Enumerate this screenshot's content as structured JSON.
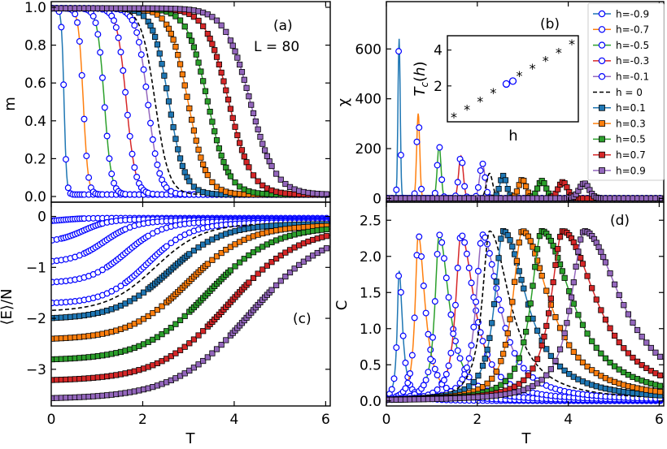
{
  "h_values": [
    -0.9,
    -0.7,
    -0.5,
    -0.3,
    -0.1,
    0,
    0.1,
    0.3,
    0.5,
    0.7,
    0.9
  ],
  "Tc_values": [
    0.28,
    0.7,
    1.16,
    1.64,
    2.11,
    2.27,
    2.57,
    2.99,
    3.42,
    3.88,
    4.35
  ],
  "series_colors": [
    "#1f77b4",
    "#ff7f0e",
    "#2ca02c",
    "#d62728",
    "#9467bd",
    "#000000",
    "#1f77b4",
    "#ff7f0e",
    "#2ca02c",
    "#d62728",
    "#9467bd"
  ],
  "marker_edge": "#0000ff",
  "chart_data": [
    {
      "id": "a",
      "type": "line",
      "panel_label": "(a)",
      "annotation": "L = 80",
      "xlabel": "",
      "ylabel": "m",
      "xlim": [
        0,
        6.1
      ],
      "ylim": [
        -0.03,
        1.03
      ],
      "xticks": [
        "0",
        "2",
        "4",
        "6"
      ],
      "yticks": [
        "0.0",
        "0.2",
        "0.4",
        "0.6",
        "0.8",
        "1.0"
      ],
      "ytick_values": [
        0,
        0.2,
        0.4,
        0.6,
        0.8,
        1.0
      ]
    },
    {
      "id": "b",
      "type": "line",
      "panel_label": "(b)",
      "xlabel": "",
      "ylabel": "χ",
      "xlim": [
        0,
        6.1
      ],
      "ylim": [
        -15,
        790
      ],
      "peak_values": [
        640,
        340,
        210,
        170,
        140,
        100,
        90,
        75,
        70,
        65,
        60
      ],
      "xticks": [
        "0",
        "2",
        "4",
        "6"
      ],
      "yticks": [
        "0",
        "200",
        "400",
        "600"
      ],
      "ytick_values": [
        0,
        200,
        400,
        600
      ],
      "legend": [
        "h=-0.9",
        "h=-0.7",
        "h=-0.5",
        "h=-0.3",
        "h=-0.1",
        "h = 0",
        "h=0.1",
        "h=0.3",
        "h=0.5",
        "h=0.7",
        "h=0.9"
      ],
      "inset": {
        "type": "scatter",
        "xlabel": "h",
        "ylabel": "T_c(h)",
        "xlim": [
          -1.0,
          1.0
        ],
        "ylim": [
          0,
          4.8
        ],
        "yticks": [
          "2",
          "4"
        ],
        "ytick_values": [
          2,
          4
        ],
        "x": [
          -0.9,
          -0.7,
          -0.5,
          -0.3,
          -0.1,
          0,
          0.1,
          0.3,
          0.5,
          0.7,
          0.9
        ],
        "y": [
          0.28,
          0.7,
          1.16,
          1.64,
          2.11,
          2.27,
          2.57,
          2.99,
          3.42,
          3.88,
          4.35
        ],
        "highlight": [
          -0.1,
          0
        ]
      }
    },
    {
      "id": "c",
      "type": "line",
      "panel_label": "(c)",
      "xlabel": "T",
      "ylabel": "⟨E⟩/N",
      "xlim": [
        0,
        6.1
      ],
      "ylim": [
        -3.72,
        0.28
      ],
      "ground_energy": [
        -0.1,
        -0.5,
        -0.9,
        -1.3,
        -1.7,
        -1.85,
        -2.0,
        -2.4,
        -2.8,
        -3.2,
        -3.55
      ],
      "xticks": [
        "0",
        "2",
        "4",
        "6"
      ],
      "yticks": [
        "0",
        "−1",
        "−2",
        "−3"
      ],
      "ytick_values": [
        0,
        -1,
        -2,
        -3
      ]
    },
    {
      "id": "d",
      "type": "line",
      "panel_label": "(d)",
      "xlabel": "T",
      "ylabel": "C",
      "xlim": [
        0,
        6.1
      ],
      "ylim": [
        -0.07,
        2.75
      ],
      "peak_values": [
        1.8,
        2.3,
        2.3,
        2.3,
        2.3,
        2.35,
        2.35,
        2.35,
        2.35,
        2.35,
        2.35
      ],
      "xticks": [
        "0",
        "2",
        "4",
        "6"
      ],
      "yticks": [
        "0.0",
        "0.5",
        "1.0",
        "1.5",
        "2.0",
        "2.5"
      ],
      "ytick_values": [
        0,
        0.5,
        1.0,
        1.5,
        2.0,
        2.5
      ]
    }
  ]
}
